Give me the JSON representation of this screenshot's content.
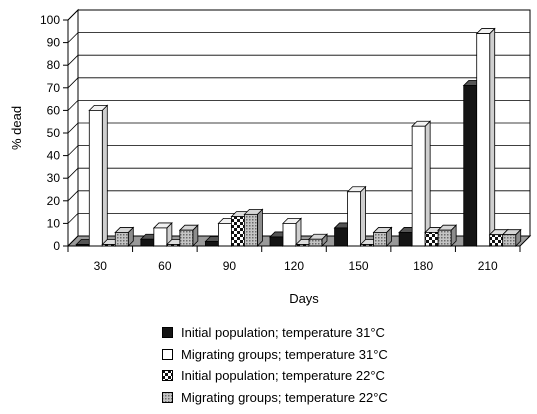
{
  "chart_data": {
    "type": "bar",
    "title": "",
    "xlabel": "Days",
    "ylabel": "% dead",
    "categories": [
      "30",
      "60",
      "90",
      "120",
      "150",
      "180",
      "210"
    ],
    "ylim": [
      0,
      100
    ],
    "yticks": [
      0,
      10,
      20,
      30,
      40,
      50,
      60,
      70,
      80,
      90,
      100
    ],
    "grid": true,
    "legend_position": "bottom",
    "series": [
      {
        "name": "Initial population; temperature 31°C",
        "values": [
          0,
          3,
          2,
          4,
          8,
          6,
          71
        ],
        "color": "#141414",
        "pattern": "solid"
      },
      {
        "name": "Migrating groups; temperature 31°C",
        "values": [
          60,
          8,
          10,
          10,
          24,
          53,
          94
        ],
        "color": "#ffffff",
        "pattern": "open"
      },
      {
        "name": "Initial population; temperature 22°C",
        "values": [
          0,
          0,
          13,
          0,
          0,
          6,
          5
        ],
        "color": "#ffffff",
        "pattern": "checker"
      },
      {
        "name": "Migrating groups; temperature 22°C",
        "values": [
          6,
          7,
          14,
          3,
          6,
          7,
          5
        ],
        "color": "#b0b0b0",
        "pattern": "dots"
      }
    ]
  }
}
